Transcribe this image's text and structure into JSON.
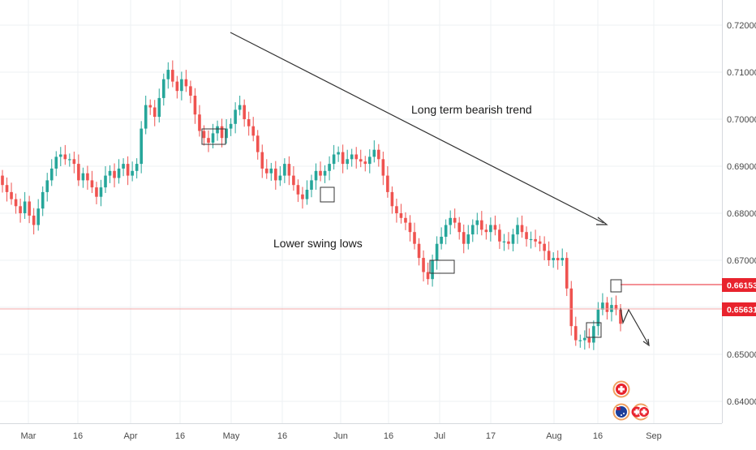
{
  "chart_data": {
    "type": "candlestick",
    "title": "",
    "xlabel": "",
    "ylabel": "",
    "x_ticks": [
      "Mar",
      "16",
      "Apr",
      "16",
      "May",
      "16",
      "Jun",
      "16",
      "Jul",
      "17",
      "Aug",
      "16",
      "Sep"
    ],
    "y_ticks": [
      "0.64000",
      "0.65000",
      "0.66000",
      "0.67000",
      "0.68000",
      "0.69000",
      "0.70000",
      "0.71000",
      "0.72000"
    ],
    "ylim": [
      0.631,
      0.723
    ],
    "grid": true,
    "price_labels": [
      {
        "value": 0.66153,
        "text": "0.66153",
        "color": "#e8232d"
      },
      {
        "value": 0.65631,
        "text": "0.65631",
        "color": "#e8232d"
      }
    ],
    "annotations": [
      {
        "text": "Long term bearish trend"
      },
      {
        "text": "Lower swing lows"
      }
    ],
    "colors": {
      "up": "#26a69a",
      "down": "#ef5350",
      "grid": "#eef0f3",
      "axis_text": "#4a4a4a",
      "price_line": "#f4a8a8",
      "marker_line": "#e8232d"
    }
  },
  "events": {
    "badges": [
      {
        "name": "event-badge-swiss",
        "icon": "swiss-flag-icon"
      },
      {
        "name": "event-badge-australia",
        "icon": "australia-flag-icon"
      },
      {
        "name": "event-badge-multi",
        "icon": "multiple-events-icon"
      }
    ]
  }
}
